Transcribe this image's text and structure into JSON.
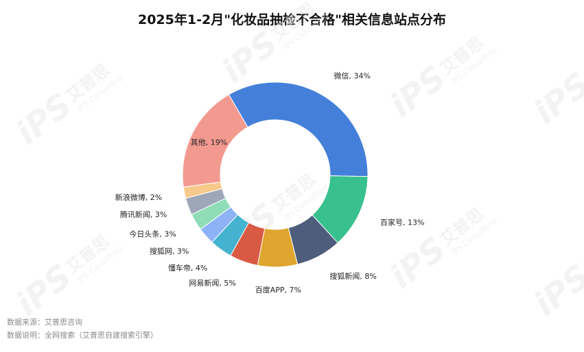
{
  "title": "2025年1-2月\"化妆品抽检不合格\"相关信息站点分布",
  "watermark": {
    "logo": "iPS",
    "cn": "艾普思",
    "en": "IPS Consulting"
  },
  "footer": {
    "source": "数据来源：艾普思咨询",
    "note": "数据说明：全网搜索（艾普思自建搜索引擎）"
  },
  "chart_data": {
    "type": "pie",
    "donut": true,
    "title": "2025年1-2月\"化妆品抽检不合格\"相关信息站点分布",
    "slices": [
      {
        "name": "微信",
        "value": 34,
        "label": "微信, 34%",
        "color": "#4480DA"
      },
      {
        "name": "百家号",
        "value": 13,
        "label": "百家号, 13%",
        "color": "#38C08E"
      },
      {
        "name": "搜狐新闻",
        "value": 8,
        "label": "搜狐新闻, 8%",
        "color": "#4E5D7C"
      },
      {
        "name": "百度APP",
        "value": 7,
        "label": "百度APP, 7%",
        "color": "#E0A52F"
      },
      {
        "name": "网易新闻",
        "value": 5,
        "label": "网易新闻, 5%",
        "color": "#D95A43"
      },
      {
        "name": "懂车帝",
        "value": 4,
        "label": "懂车帝, 4%",
        "color": "#45B2CF"
      },
      {
        "name": "搜狐网",
        "value": 3,
        "label": "搜狐网, 3%",
        "color": "#8DB2F5"
      },
      {
        "name": "今日头条",
        "value": 3,
        "label": "今日头条, 3%",
        "color": "#8FDDB7"
      },
      {
        "name": "腾讯新闻",
        "value": 3,
        "label": "腾讯新闻, 3%",
        "color": "#9DA7B8"
      },
      {
        "name": "新浪微博",
        "value": 2,
        "label": "新浪微博, 2%",
        "color": "#F7C98B"
      },
      {
        "name": "其他",
        "value": 19,
        "label": "其他, 19%",
        "color": "#F29A90"
      }
    ]
  }
}
